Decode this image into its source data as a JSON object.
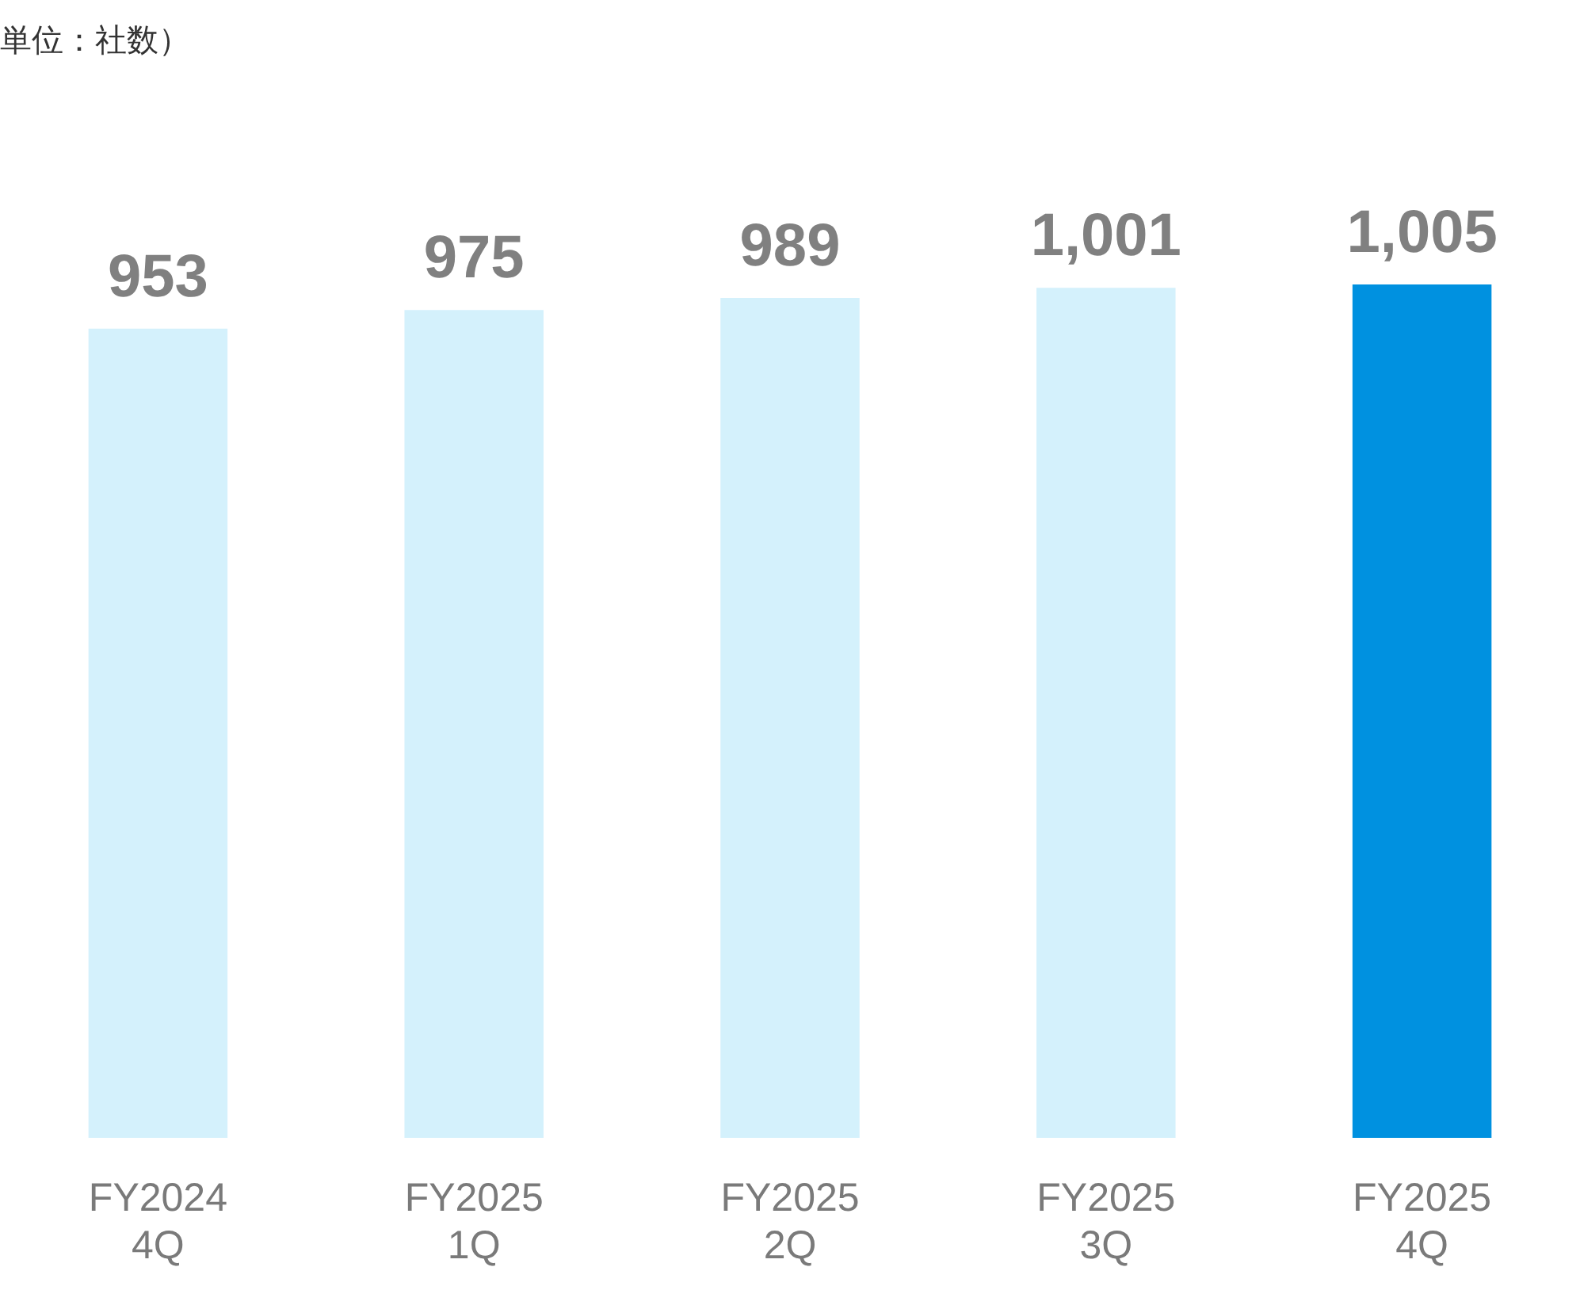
{
  "chart_data": {
    "type": "bar",
    "annotations": [
      "単位：社数）"
    ],
    "categories": [
      "FY2024\n4Q",
      "FY2025\n1Q",
      "FY2025\n2Q",
      "FY2025\n3Q",
      "FY2025\n4Q"
    ],
    "values": [
      953,
      975,
      989,
      1001,
      1005
    ],
    "colors": [
      "#d4f1fc",
      "#d4f1fc",
      "#d4f1fc",
      "#d4f1fc",
      "#0091e0"
    ],
    "value_labels": [
      "953",
      "975",
      "989",
      "1,001",
      "1,005"
    ],
    "tick_labels": "x",
    "grid": false,
    "legend": false
  }
}
